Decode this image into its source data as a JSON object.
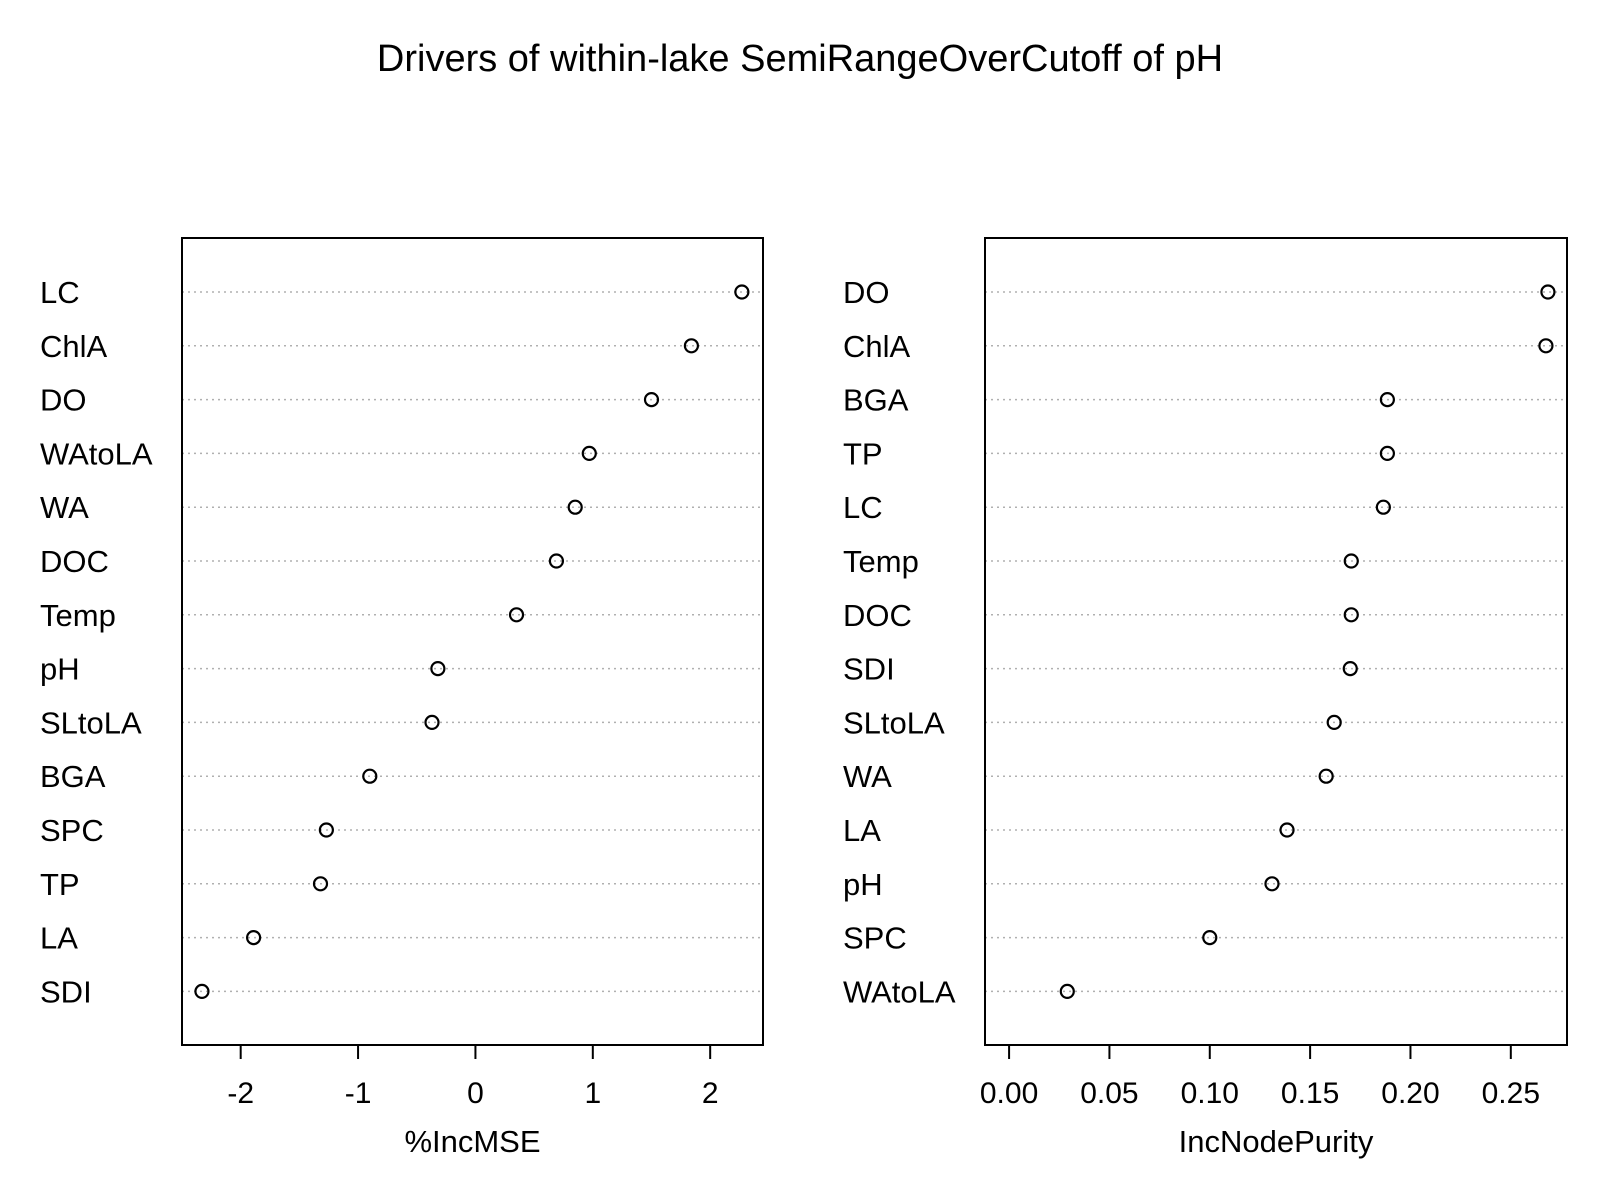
{
  "title": "Drivers of within-lake SemiRangeOverCutoff of pH",
  "chart_data": [
    {
      "type": "scatter",
      "style": "dotchart",
      "xlabel": "%IncMSE",
      "xlim": [
        -2.5,
        2.45
      ],
      "xticks": [
        "-2",
        "-1",
        "0",
        "1",
        "2"
      ],
      "xtick_values": [
        -2,
        -1,
        0,
        1,
        2
      ],
      "grid": "dotted horizontal",
      "categories": [
        "LC",
        "ChlA",
        "DO",
        "WAtoLA",
        "WA",
        "DOC",
        "Temp",
        "pH",
        "SLtoLA",
        "BGA",
        "SPC",
        "TP",
        "LA",
        "SDI"
      ],
      "values": [
        2.27,
        1.84,
        1.5,
        0.97,
        0.85,
        0.69,
        0.35,
        -0.32,
        -0.37,
        -0.9,
        -1.27,
        -1.32,
        -1.89,
        -2.33
      ]
    },
    {
      "type": "scatter",
      "style": "dotchart",
      "xlabel": "IncNodePurity",
      "xlim": [
        -0.012,
        0.278
      ],
      "xticks": [
        "0.00",
        "0.05",
        "0.10",
        "0.15",
        "0.20",
        "0.25"
      ],
      "xtick_values": [
        0,
        0.05,
        0.1,
        0.15,
        0.2,
        0.25
      ],
      "grid": "dotted horizontal",
      "categories": [
        "DO",
        "ChlA",
        "BGA",
        "TP",
        "LC",
        "Temp",
        "DOC",
        "SDI",
        "SLtoLA",
        "WA",
        "LA",
        "pH",
        "SPC",
        "WAtoLA"
      ],
      "values": [
        0.2685,
        0.2675,
        0.1885,
        0.1885,
        0.1865,
        0.1705,
        0.1705,
        0.17,
        0.162,
        0.158,
        0.1385,
        0.131,
        0.1,
        0.029
      ]
    }
  ]
}
